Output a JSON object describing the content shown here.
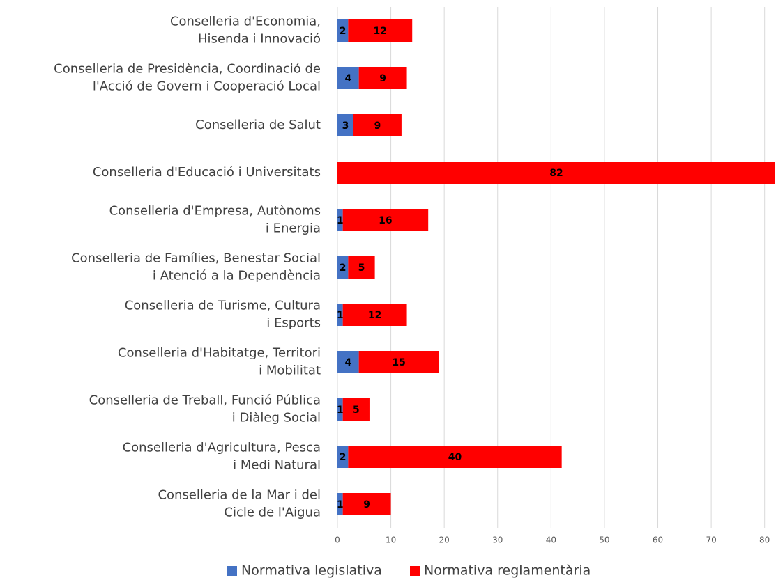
{
  "chart_data": {
    "type": "stacked_barh",
    "categories": [
      "Conselleria d'Economia,\nHisenda i Innovació",
      "Conselleria de Presidència, Coordinació de\nl'Acció de Govern i Cooperació Local",
      "Conselleria de Salut",
      "Conselleria d'Educació i Universitats",
      "Conselleria d'Empresa, Autònoms\ni Energia",
      "Conselleria de Famílies, Benestar Social\ni Atenció a la Dependència",
      "Conselleria de Turisme, Cultura\ni Esports",
      "Conselleria d'Habitatge, Territori\ni Mobilitat",
      "Conselleria de Treball, Funció Pública\ni Diàleg Social",
      "Conselleria d'Agricultura, Pesca\ni Medi Natural",
      "Conselleria de la Mar i del\nCicle de l'Aigua"
    ],
    "series": [
      {
        "name": "Normativa legislativa",
        "color": "#4472c4",
        "values": [
          2,
          4,
          3,
          null,
          1,
          2,
          1,
          4,
          1,
          2,
          1
        ]
      },
      {
        "name": "Normativa reglamentària",
        "color": "#ff0000",
        "values": [
          12,
          9,
          9,
          82,
          16,
          5,
          12,
          15,
          5,
          40,
          9
        ]
      }
    ],
    "xlim": [
      0,
      82
    ],
    "xticks": [
      0,
      10,
      20,
      30,
      40,
      50,
      60,
      70,
      80
    ],
    "grid": true,
    "legend": "bottom"
  }
}
